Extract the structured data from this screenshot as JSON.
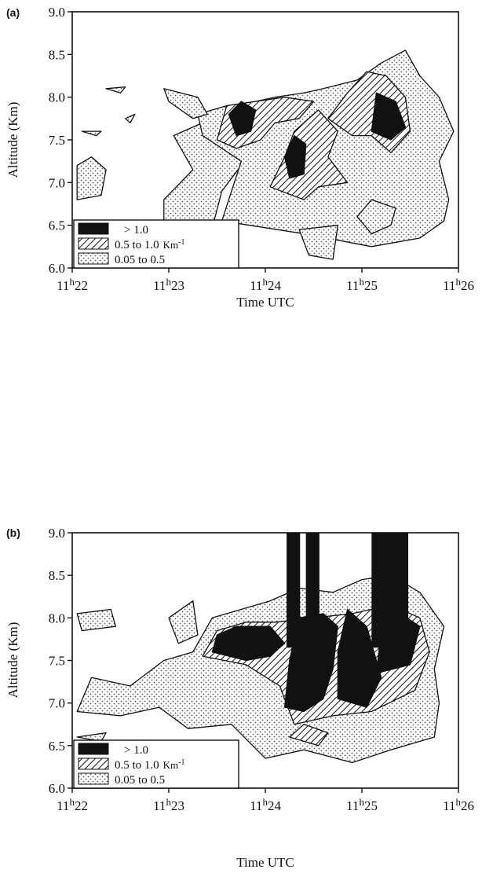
{
  "chart_data": [
    {
      "type": "heatmap",
      "panel_label": "(a)",
      "xlabel": "Time UTC",
      "ylabel": "Altitude (Km)",
      "x_ticks": [
        {
          "value": 0,
          "hour": "11",
          "sup": "h",
          "minute": "22"
        },
        {
          "value": 1,
          "hour": "11",
          "sup": "h",
          "minute": "23"
        },
        {
          "value": 2,
          "hour": "11",
          "sup": "h",
          "minute": "24"
        },
        {
          "value": 3,
          "hour": "11",
          "sup": "h",
          "minute": "25"
        },
        {
          "value": 4,
          "hour": "11",
          "sup": "h",
          "minute": "26"
        }
      ],
      "xlim": [
        0,
        4
      ],
      "ylim": [
        6.0,
        9.0
      ],
      "y_ticks": [
        "6.0",
        "6.5",
        "7.0",
        "7.5",
        "8.0",
        "8.5",
        "9.0"
      ],
      "legend": {
        "placement": "bottom-left",
        "entries": [
          {
            "label": "> 1.0",
            "unit": "",
            "fill": "solid"
          },
          {
            "label": "0.5 to 1.0",
            "unit": "Km",
            "unit_sup": "-1",
            "fill": "hatch"
          },
          {
            "label": "0.05 to 0.5",
            "unit": "",
            "fill": "dots"
          }
        ]
      },
      "regions": {
        "low": [
          [
            [
              0.95,
              6.1
            ],
            [
              1.4,
              6.25
            ],
            [
              1.55,
              6.9
            ],
            [
              1.85,
              7.35
            ],
            [
              1.45,
              7.75
            ],
            [
              1.05,
              7.55
            ],
            [
              1.25,
              7.15
            ],
            [
              0.95,
              6.8
            ]
          ],
          [
            [
              1.55,
              6.55
            ],
            [
              2.4,
              6.4
            ],
            [
              3.1,
              6.25
            ],
            [
              3.6,
              6.35
            ],
            [
              3.85,
              6.55
            ],
            [
              3.9,
              6.8
            ],
            [
              3.8,
              7.25
            ],
            [
              3.95,
              7.6
            ],
            [
              3.8,
              8.0
            ],
            [
              3.6,
              8.25
            ],
            [
              3.45,
              8.55
            ],
            [
              3.2,
              8.4
            ],
            [
              2.95,
              8.2
            ],
            [
              2.6,
              8.1
            ],
            [
              2.4,
              8.05
            ],
            [
              2.1,
              8.0
            ],
            [
              1.9,
              7.95
            ],
            [
              1.6,
              7.9
            ],
            [
              1.3,
              7.8
            ],
            [
              1.35,
              7.55
            ],
            [
              1.75,
              7.25
            ]
          ],
          [
            [
              0.95,
              8.1
            ],
            [
              1.3,
              8.0
            ],
            [
              1.4,
              7.8
            ],
            [
              1.25,
              7.75
            ],
            [
              1.0,
              7.95
            ]
          ],
          [
            [
              0.05,
              6.8
            ],
            [
              0.3,
              6.85
            ],
            [
              0.35,
              7.15
            ],
            [
              0.2,
              7.3
            ],
            [
              0.05,
              7.2
            ]
          ],
          [
            [
              0.1,
              7.6
            ],
            [
              0.3,
              7.6
            ],
            [
              0.25,
              7.55
            ]
          ],
          [
            [
              0.55,
              7.75
            ],
            [
              0.65,
              7.8
            ],
            [
              0.6,
              7.7
            ]
          ],
          [
            [
              0.35,
              8.1
            ],
            [
              0.55,
              8.12
            ],
            [
              0.5,
              8.05
            ]
          ],
          [
            [
              2.35,
              6.45
            ],
            [
              2.75,
              6.5
            ],
            [
              2.7,
              6.1
            ],
            [
              2.45,
              6.15
            ]
          ],
          [
            [
              3.1,
              6.4
            ],
            [
              3.3,
              6.5
            ],
            [
              3.35,
              6.7
            ],
            [
              3.1,
              6.8
            ],
            [
              2.95,
              6.6
            ]
          ]
        ],
        "mid": [
          [
            [
              1.5,
              7.5
            ],
            [
              1.7,
              7.4
            ],
            [
              1.95,
              7.5
            ],
            [
              2.1,
              7.7
            ],
            [
              2.35,
              7.75
            ],
            [
              2.5,
              7.95
            ],
            [
              2.2,
              8.0
            ],
            [
              1.9,
              7.95
            ],
            [
              1.6,
              7.9
            ]
          ],
          [
            [
              2.05,
              6.95
            ],
            [
              2.4,
              6.8
            ],
            [
              2.55,
              6.95
            ],
            [
              2.85,
              7.0
            ],
            [
              2.65,
              7.3
            ],
            [
              2.75,
              7.6
            ],
            [
              2.55,
              7.85
            ],
            [
              2.3,
              7.6
            ],
            [
              2.2,
              7.3
            ]
          ],
          [
            [
              2.65,
              7.75
            ],
            [
              2.9,
              7.55
            ],
            [
              3.1,
              7.55
            ],
            [
              3.3,
              7.35
            ],
            [
              3.5,
              7.6
            ],
            [
              3.45,
              8.0
            ],
            [
              3.25,
              8.25
            ],
            [
              3.05,
              8.3
            ],
            [
              2.85,
              8.05
            ]
          ]
        ],
        "high": [
          [
            [
              1.7,
              7.55
            ],
            [
              1.85,
              7.6
            ],
            [
              1.9,
              7.85
            ],
            [
              1.75,
              7.95
            ],
            [
              1.62,
              7.8
            ]
          ],
          [
            [
              2.25,
              7.05
            ],
            [
              2.4,
              7.1
            ],
            [
              2.42,
              7.45
            ],
            [
              2.3,
              7.55
            ],
            [
              2.2,
              7.3
            ]
          ],
          [
            [
              3.1,
              7.6
            ],
            [
              3.3,
              7.5
            ],
            [
              3.45,
              7.65
            ],
            [
              3.35,
              7.95
            ],
            [
              3.15,
              8.05
            ]
          ]
        ]
      }
    },
    {
      "type": "heatmap",
      "panel_label": "(b)",
      "xlabel": "Time UTC",
      "ylabel": "Altitude (Km)",
      "x_ticks": [
        {
          "value": 0,
          "hour": "11",
          "sup": "h",
          "minute": "22"
        },
        {
          "value": 1,
          "hour": "11",
          "sup": "h",
          "minute": "23"
        },
        {
          "value": 2,
          "hour": "11",
          "sup": "h",
          "minute": "24"
        },
        {
          "value": 3,
          "hour": "11",
          "sup": "h",
          "minute": "25"
        },
        {
          "value": 4,
          "hour": "11",
          "sup": "h",
          "minute": "26"
        }
      ],
      "xlim": [
        0,
        4
      ],
      "ylim": [
        6.0,
        9.0
      ],
      "y_ticks": [
        "6.0",
        "6.5",
        "7.0",
        "7.5",
        "8.0",
        "8.5",
        "9.0"
      ],
      "legend": {
        "placement": "bottom-left",
        "entries": [
          {
            "label": "> 1.0",
            "unit": "",
            "fill": "solid"
          },
          {
            "label": "0.5 to 1.0",
            "unit": "Km",
            "unit_sup": "-1",
            "fill": "hatch"
          },
          {
            "label": "0.05 to 0.5",
            "unit": "",
            "fill": "dots"
          }
        ]
      },
      "regions": {
        "low": [
          [
            [
              0.05,
              6.9
            ],
            [
              0.5,
              6.85
            ],
            [
              0.9,
              6.95
            ],
            [
              1.2,
              6.7
            ],
            [
              1.65,
              6.75
            ],
            [
              2.0,
              6.35
            ],
            [
              2.4,
              6.45
            ],
            [
              2.9,
              6.3
            ],
            [
              3.3,
              6.45
            ],
            [
              3.75,
              6.6
            ],
            [
              3.8,
              7.0
            ],
            [
              3.75,
              7.4
            ],
            [
              3.85,
              7.9
            ],
            [
              3.6,
              8.3
            ],
            [
              3.3,
              8.5
            ],
            [
              3.0,
              8.45
            ],
            [
              2.7,
              8.3
            ],
            [
              2.35,
              8.35
            ],
            [
              2.05,
              8.2
            ],
            [
              1.75,
              8.1
            ],
            [
              1.45,
              8.0
            ],
            [
              1.25,
              7.6
            ],
            [
              0.95,
              7.5
            ],
            [
              0.6,
              7.2
            ],
            [
              0.2,
              7.3
            ]
          ],
          [
            [
              1.0,
              8.0
            ],
            [
              1.25,
              8.2
            ],
            [
              1.3,
              7.8
            ],
            [
              1.1,
              7.7
            ]
          ],
          [
            [
              0.05,
              8.05
            ],
            [
              0.4,
              8.1
            ],
            [
              0.45,
              7.9
            ],
            [
              0.1,
              7.85
            ]
          ],
          [
            [
              0.05,
              6.6
            ],
            [
              0.35,
              6.65
            ],
            [
              0.3,
              6.55
            ]
          ]
        ],
        "mid": [
          [
            [
              1.35,
              7.55
            ],
            [
              1.8,
              7.45
            ],
            [
              2.15,
              7.2
            ],
            [
              2.3,
              6.75
            ],
            [
              2.7,
              6.85
            ],
            [
              3.1,
              6.9
            ],
            [
              3.55,
              7.15
            ],
            [
              3.7,
              7.6
            ],
            [
              3.6,
              8.0
            ],
            [
              3.3,
              8.15
            ],
            [
              2.9,
              8.05
            ],
            [
              2.5,
              8.0
            ],
            [
              2.1,
              7.95
            ],
            [
              1.8,
              7.95
            ],
            [
              1.5,
              7.85
            ]
          ],
          [
            [
              2.25,
              6.6
            ],
            [
              2.55,
              6.5
            ],
            [
              2.65,
              6.65
            ],
            [
              2.4,
              6.75
            ]
          ]
        ],
        "high": [
          [
            [
              1.45,
              7.6
            ],
            [
              1.8,
              7.5
            ],
            [
              2.05,
              7.55
            ],
            [
              2.2,
              7.7
            ],
            [
              2.05,
              7.9
            ],
            [
              1.7,
              7.9
            ],
            [
              1.5,
              7.8
            ]
          ],
          [
            [
              2.2,
              6.95
            ],
            [
              2.4,
              6.9
            ],
            [
              2.6,
              7.05
            ],
            [
              2.7,
              7.4
            ],
            [
              2.75,
              7.9
            ],
            [
              2.6,
              8.05
            ],
            [
              2.35,
              8.0
            ],
            [
              2.25,
              7.5
            ]
          ],
          [
            [
              2.75,
              7.05
            ],
            [
              3.05,
              6.95
            ],
            [
              3.2,
              7.3
            ],
            [
              3.05,
              7.9
            ],
            [
              2.85,
              8.1
            ],
            [
              2.75,
              7.6
            ]
          ],
          [
            [
              3.15,
              7.35
            ],
            [
              3.5,
              7.45
            ],
            [
              3.6,
              7.9
            ],
            [
              3.4,
              8.05
            ],
            [
              3.2,
              7.85
            ]
          ]
        ],
        "columns": [
          [
            2.22,
            2.36
          ],
          [
            2.42,
            2.56
          ],
          [
            3.1,
            3.48
          ]
        ]
      }
    }
  ]
}
